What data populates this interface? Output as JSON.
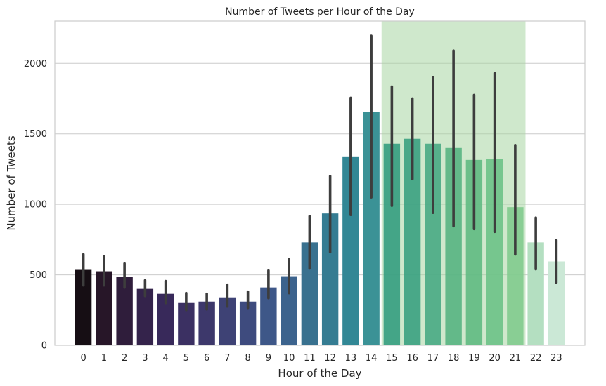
{
  "chart_data": {
    "type": "bar",
    "title": "Number of Tweets per Hour of the Day",
    "xlabel": "Hour of the Day",
    "ylabel": "Number of Tweets",
    "ylim": [
      0,
      2300
    ],
    "yticks": [
      0,
      500,
      1000,
      1500,
      2000
    ],
    "grid": "horizontal",
    "categories": [
      "0",
      "1",
      "2",
      "3",
      "4",
      "5",
      "6",
      "7",
      "8",
      "9",
      "10",
      "11",
      "12",
      "13",
      "14",
      "15",
      "16",
      "17",
      "18",
      "19",
      "20",
      "21",
      "22",
      "23"
    ],
    "values": [
      535,
      525,
      485,
      400,
      365,
      300,
      310,
      340,
      310,
      410,
      490,
      730,
      935,
      1340,
      1655,
      1430,
      1465,
      1430,
      1400,
      1315,
      1320,
      980,
      730,
      595
    ],
    "error_bars": [
      [
        425,
        645
      ],
      [
        425,
        630
      ],
      [
        410,
        580
      ],
      [
        350,
        460
      ],
      [
        300,
        455
      ],
      [
        250,
        370
      ],
      [
        255,
        365
      ],
      [
        275,
        430
      ],
      [
        265,
        380
      ],
      [
        335,
        530
      ],
      [
        370,
        610
      ],
      [
        545,
        915
      ],
      [
        660,
        1200
      ],
      [
        925,
        1755
      ],
      [
        1050,
        2195
      ],
      [
        990,
        1835
      ],
      [
        1180,
        1750
      ],
      [
        940,
        1900
      ],
      [
        845,
        2090
      ],
      [
        825,
        1775
      ],
      [
        805,
        1930
      ],
      [
        645,
        1420
      ],
      [
        540,
        905
      ],
      [
        445,
        745
      ]
    ],
    "highlight_span": {
      "from": "15",
      "to": "21",
      "color": "#a8d5a2"
    },
    "bar_colors": [
      "#160e14",
      "#271628",
      "#2f1d3b",
      "#34234b",
      "#38295a",
      "#3b3062",
      "#3d386b",
      "#3e4275",
      "#3e4b7e",
      "#3e5788",
      "#3c638d",
      "#39718f",
      "#357c92",
      "#328795",
      "#3b9296",
      "#349d7f",
      "#3aa181",
      "#48aa84",
      "#57b482",
      "#5fba82",
      "#6cc287",
      "#81cb8e",
      "#b4dfc1",
      "#cbe8d6"
    ],
    "error_color": "#3d3d3d"
  }
}
